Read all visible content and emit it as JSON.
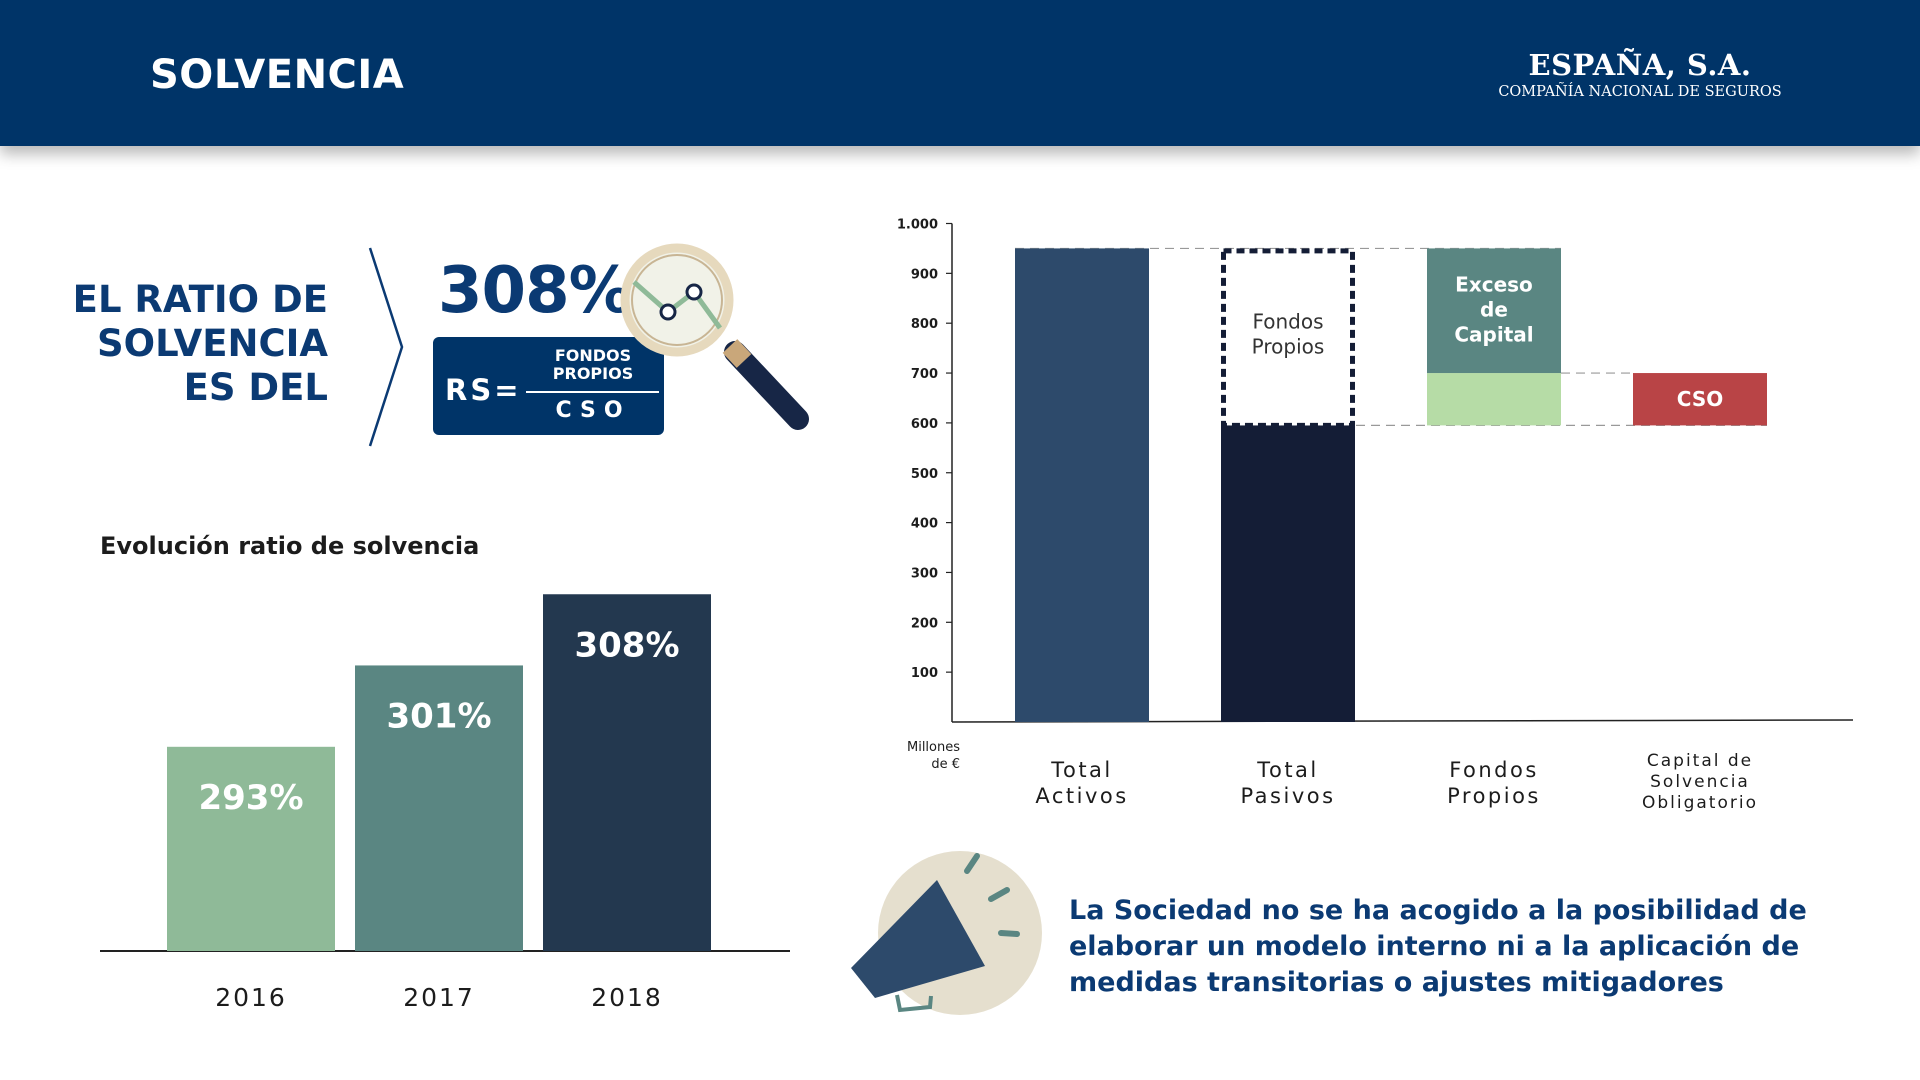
{
  "header": {
    "title": "SOLVENCIA",
    "brand_name": "ESPAÑA, S.A.",
    "brand_sub": "COMPAÑÍA NACIONAL DE SEGUROS"
  },
  "ratio": {
    "heading": "EL RATIO DE SOLVENCIA ES DEL",
    "value": "308%",
    "formula_label": "RS=",
    "numerator": "FONDOS PROPIOS",
    "denominator": "CSO"
  },
  "note": "La Sociedad no se ha acogido a la posibilidad de elaborar un modelo interno ni a la aplicación de medidas transitorias o ajustes mitigadores",
  "colors": {
    "navy": "#003468",
    "heading_blue": "#0b3a73",
    "bar_2016": "#8fba98",
    "bar_2017": "#5a8682",
    "bar_2018": "#23384f",
    "total_activos": "#2d4a6b",
    "total_pasivos": "#141d36",
    "exceso": "#5a8682",
    "fondos_lower": "#b6dca6",
    "cso": "#b94446"
  },
  "chart_data": [
    {
      "type": "bar",
      "title": "Evolución ratio de solvencia",
      "categories": [
        "2016",
        "2017",
        "2018"
      ],
      "values": [
        293,
        301,
        308
      ],
      "data_labels": [
        "293%",
        "301%",
        "308%"
      ],
      "xlabel": "",
      "ylabel": ""
    },
    {
      "type": "bar",
      "title": "",
      "ylabel": "Millones de €",
      "ylim": [
        0,
        1000
      ],
      "y_ticks": [
        "100",
        "200",
        "300",
        "400",
        "500",
        "600",
        "700",
        "800",
        "900",
        "1.000"
      ],
      "grid": false,
      "categories": [
        "Total Activos",
        "Total Pasivos",
        "Fondos Propios",
        "Capital de Solvencia Obligatorio"
      ],
      "segments": [
        {
          "category": "Total Activos",
          "label": "",
          "bottom": 0,
          "top": 950
        },
        {
          "category": "Total Pasivos",
          "label": "",
          "bottom": 0,
          "top": 595
        },
        {
          "category": "Total Pasivos",
          "label": "Fondos Propios",
          "bottom": 595,
          "top": 950,
          "dashed": true
        },
        {
          "category": "Fondos Propios",
          "label": "",
          "bottom": 595,
          "top": 700
        },
        {
          "category": "Fondos Propios",
          "label": "Exceso de Capital",
          "bottom": 700,
          "top": 950
        },
        {
          "category": "Capital de Solvencia Obligatorio",
          "label": "CSO",
          "bottom": 595,
          "top": 700
        }
      ]
    }
  ]
}
